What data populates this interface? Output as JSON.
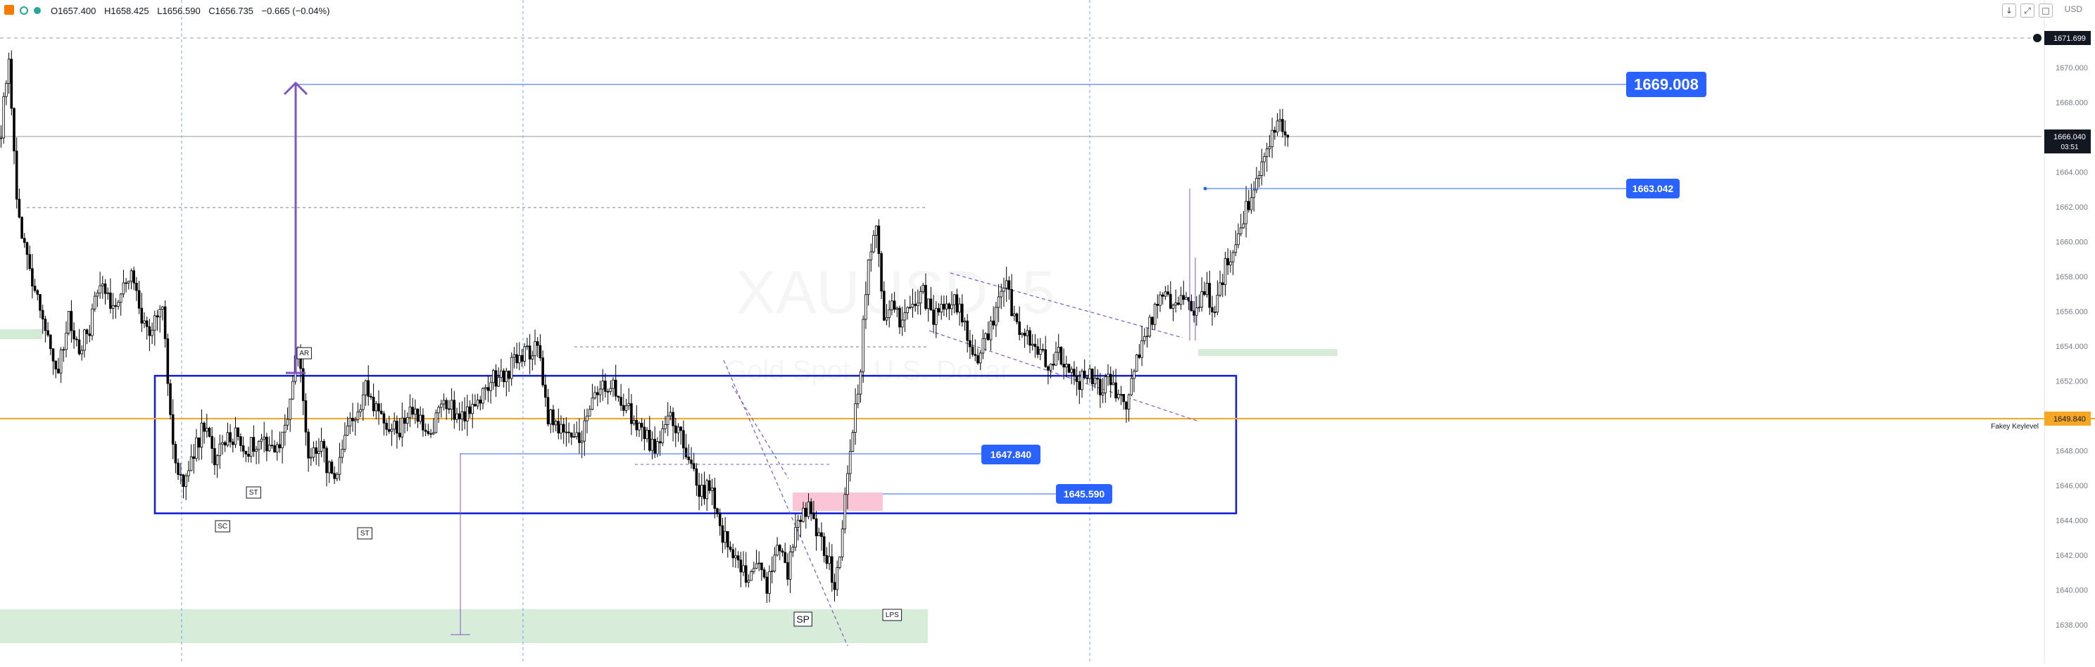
{
  "header": {
    "ohlc": {
      "open": "O1657.400",
      "high": "H1658.425",
      "low": "L1656.590",
      "close": "C1656.735",
      "change": "−0.665 (−0.04%)"
    },
    "currency_label": "USD",
    "icons": [
      "collapse-down-icon",
      "fullscreen-icon",
      "settings-icon"
    ]
  },
  "watermark": {
    "symbol": "XAUUSD, 5",
    "description": "Gold Spot / U.S. Dollar"
  },
  "price_axis": {
    "ticks": [
      "1670.000",
      "1668.000",
      "1666.000",
      "1664.000",
      "1662.000",
      "1660.000",
      "1658.000",
      "1656.000",
      "1654.000",
      "1652.000",
      "1650.000",
      "1648.000",
      "1646.000",
      "1644.000",
      "1642.000",
      "1640.000",
      "1638.000"
    ],
    "badges": {
      "top_value": "1671.699",
      "current_price": "1666.040",
      "countdown": "03:51",
      "keylevel_value": "1649.840"
    }
  },
  "annotations": {
    "level_1669": "1669.008",
    "level_1663": "1663.042",
    "level_1647": "1647.840",
    "level_1645": "1645.590",
    "keylevel_label": "Fakey Keylevel",
    "labels": [
      "AR",
      "ST",
      "SC",
      "ST",
      "SP",
      "LPS"
    ]
  },
  "colors": {
    "background": "#ffffff",
    "candle": "#000000",
    "accent_blue": "#2962ff",
    "range_box": "#0d1ad6",
    "keylevel": "#f5a623",
    "zone_green": "#c8e6c9",
    "zone_pink": "#f8bbd0",
    "arrow_purple": "#7e57c2"
  },
  "chart_data": {
    "type": "candlestick",
    "title": "XAUUSD, 5",
    "subtitle": "Gold Spot / U.S. Dollar",
    "ylim": [
      1637.0,
      1674.0
    ],
    "x_count": 330,
    "series": [
      {
        "name": "XAUUSD",
        "close_path": [
          [
            0,
            1666.5
          ],
          [
            3,
            1670.8
          ],
          [
            6,
            1662.0
          ],
          [
            10,
            1659.0
          ],
          [
            14,
            1657.0
          ],
          [
            18,
            1654.5
          ],
          [
            22,
            1652.5
          ],
          [
            26,
            1655.5
          ],
          [
            30,
            1654.0
          ],
          [
            34,
            1655.0
          ],
          [
            38,
            1658.0
          ],
          [
            42,
            1656.5
          ],
          [
            46,
            1657.0
          ],
          [
            50,
            1658.0
          ],
          [
            54,
            1655.5
          ],
          [
            58,
            1654.8
          ],
          [
            62,
            1656.5
          ],
          [
            66,
            1648.0
          ],
          [
            70,
            1646.0
          ],
          [
            74,
            1647.8
          ],
          [
            78,
            1649.5
          ],
          [
            82,
            1647.5
          ],
          [
            86,
            1648.5
          ],
          [
            90,
            1649.0
          ],
          [
            94,
            1648.0
          ],
          [
            100,
            1648.8
          ],
          [
            106,
            1648.0
          ],
          [
            110,
            1650.0
          ],
          [
            114,
            1654.0
          ],
          [
            118,
            1647.5
          ],
          [
            122,
            1648.5
          ],
          [
            128,
            1646.0
          ],
          [
            134,
            1649.5
          ],
          [
            140,
            1651.5
          ],
          [
            146,
            1650.0
          ],
          [
            152,
            1649.0
          ],
          [
            158,
            1650.5
          ],
          [
            164,
            1648.5
          ],
          [
            170,
            1651.0
          ],
          [
            176,
            1650.0
          ],
          [
            182,
            1650.5
          ],
          [
            188,
            1652.0
          ],
          [
            194,
            1652.5
          ],
          [
            200,
            1653.5
          ],
          [
            206,
            1654.0
          ],
          [
            210,
            1650.0
          ],
          [
            216,
            1649.0
          ],
          [
            222,
            1648.5
          ],
          [
            228,
            1651.0
          ],
          [
            234,
            1652.0
          ],
          [
            240,
            1650.5
          ],
          [
            246,
            1649.0
          ],
          [
            252,
            1648.0
          ],
          [
            256,
            1650.0
          ],
          [
            260,
            1649.0
          ],
          [
            264,
            1647.5
          ],
          [
            268,
            1645.5
          ],
          [
            272,
            1646.0
          ],
          [
            276,
            1643.5
          ],
          [
            282,
            1642.0
          ],
          [
            286,
            1640.5
          ],
          [
            290,
            1641.5
          ],
          [
            294,
            1640.0
          ],
          [
            298,
            1642.5
          ],
          [
            302,
            1641.0
          ],
          [
            306,
            1644.0
          ],
          [
            310,
            1645.0
          ],
          [
            314,
            1643.0
          ],
          [
            318,
            1641.5
          ],
          [
            320,
            1640.2
          ],
          [
            323,
            1643.5
          ],
          [
            326,
            1648.0
          ],
          [
            330,
            1653.0
          ],
          [
            333,
            1659.0
          ],
          [
            336,
            1661.0
          ],
          [
            339,
            1655.5
          ],
          [
            342,
            1657.0
          ],
          [
            346,
            1655.0
          ],
          [
            350,
            1656.5
          ],
          [
            354,
            1657.0
          ],
          [
            358,
            1655.5
          ],
          [
            362,
            1656.0
          ],
          [
            366,
            1657.0
          ],
          [
            370,
            1655.0
          ],
          [
            374,
            1653.0
          ],
          [
            378,
            1654.5
          ],
          [
            382,
            1656.0
          ],
          [
            386,
            1657.5
          ],
          [
            390,
            1655.0
          ],
          [
            394,
            1654.5
          ],
          [
            398,
            1654.0
          ],
          [
            402,
            1653.0
          ],
          [
            406,
            1653.5
          ],
          [
            410,
            1652.5
          ],
          [
            414,
            1652.0
          ],
          [
            418,
            1652.5
          ],
          [
            422,
            1651.5
          ],
          [
            426,
            1652.0
          ],
          [
            430,
            1651.0
          ],
          [
            432,
            1650.0
          ],
          [
            434,
            1652.5
          ],
          [
            438,
            1654.0
          ],
          [
            442,
            1655.5
          ],
          [
            446,
            1657.0
          ],
          [
            450,
            1656.5
          ],
          [
            454,
            1657.0
          ],
          [
            458,
            1656.0
          ],
          [
            462,
            1657.5
          ],
          [
            466,
            1656.0
          ],
          [
            470,
            1658.5
          ],
          [
            474,
            1660.0
          ],
          [
            478,
            1662.0
          ],
          [
            482,
            1663.5
          ],
          [
            486,
            1665.0
          ],
          [
            490,
            1667.0
          ],
          [
            494,
            1666.0
          ]
        ]
      }
    ],
    "horizontal_levels": [
      {
        "value": 1669.008,
        "label": "1669.008"
      },
      {
        "value": 1663.042,
        "label": "1663.042"
      },
      {
        "value": 1647.84,
        "label": "1647.840"
      },
      {
        "value": 1645.59,
        "label": "1645.590"
      },
      {
        "value": 1649.84,
        "label": "Fakey Keylevel"
      }
    ],
    "range_box": {
      "top": 1652.3,
      "bottom": 1644.4
    },
    "grid": true
  }
}
